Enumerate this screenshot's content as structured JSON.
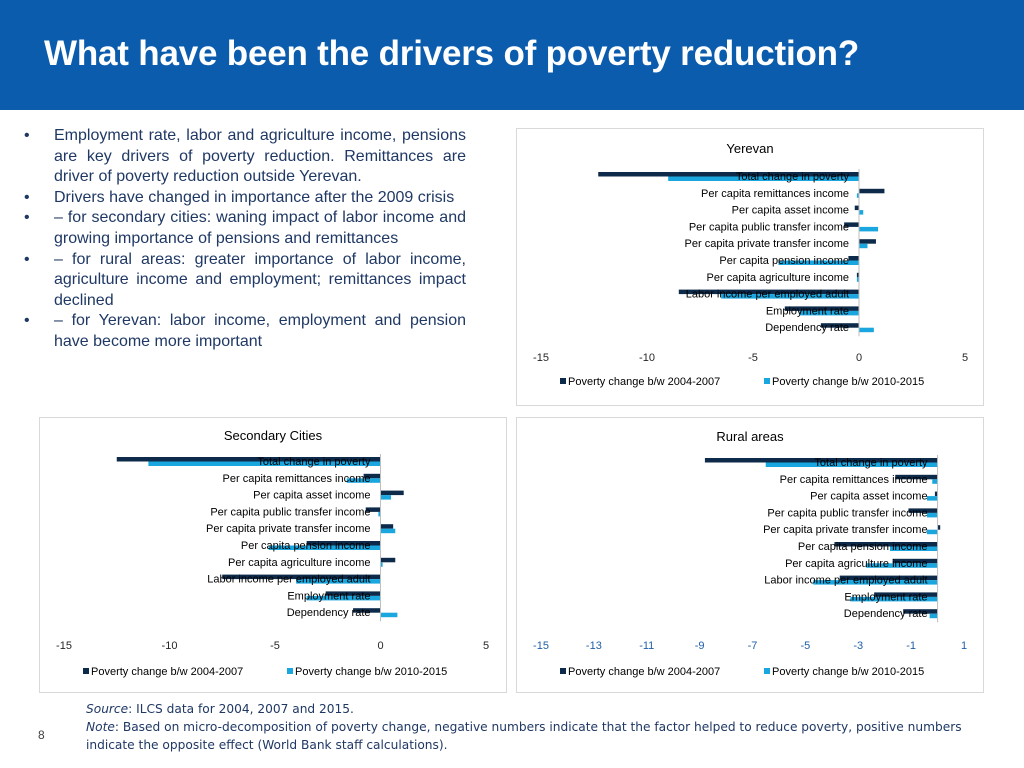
{
  "title": "What have been the drivers of poverty reduction?",
  "bullets": [
    {
      "marker": "•",
      "text": "Employment rate, labor and agriculture income, pensions are key drivers of poverty reduction. Remittances are driver of poverty reduction outside Yerevan."
    },
    {
      "marker": "•",
      "text": "Drivers have changed in importance after the 2009 crisis"
    },
    {
      "marker": "•",
      "text": "– for secondary cities: waning impact of labor income and growing importance of pensions and remittances"
    },
    {
      "marker": "•",
      "text": "– for rural areas: greater importance of labor income, agriculture income and employment; remittances impact declined"
    },
    {
      "marker": "•",
      "text": "– for Yerevan: labor income, employment and pension have become more important"
    }
  ],
  "footer": {
    "source_label": "Source",
    "source_text": ": ILCS data for 2004, 2007 and 2015.",
    "note_label": "Note",
    "note_text": ": Based on micro-decomposition of poverty change, negative numbers indicate that the factor helped to reduce poverty, positive numbers indicate the opposite effect (World Bank staff calculations)."
  },
  "page_number": "8",
  "colors": {
    "header_bg": "#0b5cad",
    "series1": "#0d2a4a",
    "series2": "#1aa6de",
    "text": "#1f3864"
  },
  "chart_data": [
    {
      "type": "bar",
      "orientation": "horizontal",
      "title": "Yerevan",
      "categories": [
        "Total change in poverty",
        "Per capita remittances income",
        "Per capita asset income",
        "Per capita public transfer income",
        "Per capita private transfer income",
        "Per capita pension income",
        "Per capita agriculture income",
        "Labor income per employed adult",
        "Employment rate",
        "Dependency rate"
      ],
      "series": [
        {
          "name": "Poverty change b/w 2004-2007",
          "values": [
            -12.3,
            1.2,
            -0.2,
            -0.7,
            0.8,
            -0.5,
            -0.1,
            -8.5,
            -3.5,
            -1.8
          ]
        },
        {
          "name": "Poverty change b/w 2010-2015",
          "values": [
            -9.0,
            -0.1,
            0.2,
            0.9,
            0.4,
            -3.8,
            -0.1,
            -6.5,
            -2.8,
            0.7
          ]
        }
      ],
      "xlim": [
        -15,
        5
      ],
      "xticks": [
        "-15",
        "-10",
        "-5",
        "0",
        "5"
      ],
      "legend": "bottom"
    },
    {
      "type": "bar",
      "orientation": "horizontal",
      "title": "Secondary Cities",
      "categories": [
        "Total change in poverty",
        "Per capita remittances income",
        "Per capita asset income",
        "Per capita public transfer income",
        "Per capita private transfer income",
        "Per capita pension income",
        "Per capita agriculture income",
        "Labor income per employed adult",
        "Employment rate",
        "Dependency rate"
      ],
      "series": [
        {
          "name": "Poverty change b/w 2004-2007",
          "values": [
            -12.5,
            -0.8,
            1.1,
            -0.7,
            0.6,
            -3.5,
            0.7,
            -7.5,
            -2.6,
            -1.3
          ]
        },
        {
          "name": "Poverty change b/w 2010-2015",
          "values": [
            -11.0,
            -1.6,
            0.5,
            -0.1,
            0.7,
            -5.3,
            0.1,
            -4.0,
            -3.5,
            0.8
          ]
        }
      ],
      "xlim": [
        -15,
        5
      ],
      "xticks": [
        "-15",
        "-10",
        "-5",
        "0",
        "5"
      ],
      "legend": "bottom"
    },
    {
      "type": "bar",
      "orientation": "horizontal",
      "title": "Rural areas",
      "categories": [
        "Total change in poverty",
        "Per capita remittances income",
        "Per capita asset income",
        "Per capita public transfer income",
        "Per capita private transfer income",
        "Per capita pension income",
        "Per capita agriculture income",
        "Labor income per employed adult",
        "Employment rate",
        "Dependency rate"
      ],
      "series": [
        {
          "name": "Poverty change b/w 2004-2007",
          "values": [
            -8.8,
            -1.6,
            -0.1,
            -1.1,
            0.1,
            -3.9,
            -1.7,
            -3.7,
            -2.4,
            -1.3
          ]
        },
        {
          "name": "Poverty change b/w 2010-2015",
          "values": [
            -6.5,
            -0.2,
            -0.4,
            -0.4,
            -0.4,
            -1.8,
            -2.7,
            -4.7,
            -3.3,
            -0.3
          ]
        }
      ],
      "xlim": [
        -15,
        1
      ],
      "xticks": [
        "-15",
        "-13",
        "-11",
        "-9",
        "-7",
        "-5",
        "-3",
        "-1",
        "1"
      ],
      "legend": "bottom"
    }
  ]
}
